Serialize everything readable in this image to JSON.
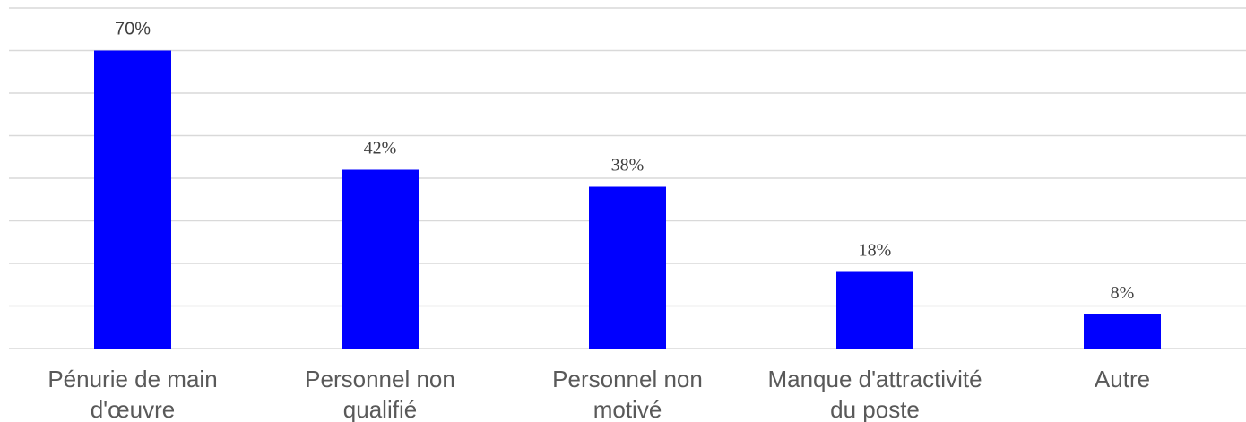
{
  "chart_data": {
    "type": "bar",
    "categories": [
      [
        "Pénurie de main",
        "d'œuvre"
      ],
      [
        "Personnel non",
        "qualifié"
      ],
      [
        "Personnel non",
        "motivé"
      ],
      [
        "Manque d'attractivité",
        "du poste"
      ],
      [
        "Autre"
      ]
    ],
    "values": [
      70,
      42,
      38,
      18,
      8
    ],
    "value_labels": [
      "70%",
      "42%",
      "38%",
      "18%",
      "8%"
    ],
    "unit": "%",
    "ylim": [
      0,
      80
    ],
    "grid": true,
    "bar_color": "#0000ff",
    "title": "",
    "xlabel": "",
    "ylabel": ""
  }
}
